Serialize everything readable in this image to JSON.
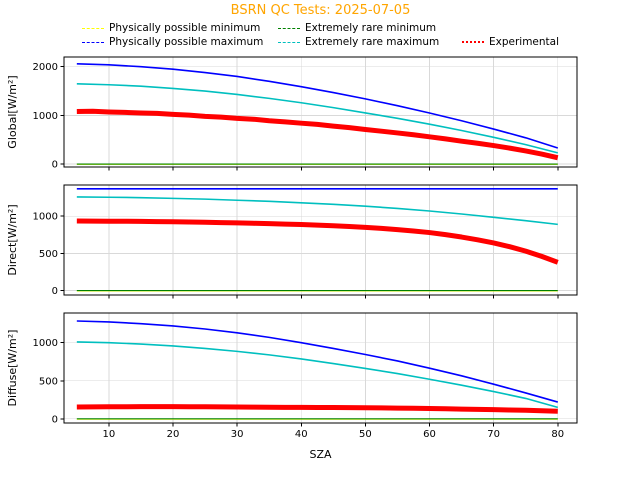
{
  "title": "BSRN QC Tests: 2025-07-05",
  "xlabel": "SZA",
  "colors": {
    "title": "#ffa500",
    "grid": "#d9d9d9",
    "axes": "#000000",
    "background": "#ffffff"
  },
  "legend": {
    "items": [
      {
        "label": "Physically possible minimum",
        "color": "#ffff00",
        "dash": "dashed",
        "row": 1,
        "col": 1
      },
      {
        "label": "Extremely rare minimum",
        "color": "#008000",
        "dash": "dashed",
        "row": 1,
        "col": 2
      },
      {
        "label": "Physically possible maximum",
        "color": "#0000ff",
        "dash": "dashed",
        "row": 2,
        "col": 1
      },
      {
        "label": "Extremely rare maximum",
        "color": "#00bfbf",
        "dash": "dashed",
        "row": 2,
        "col": 2
      },
      {
        "label": "Experimental",
        "color": "#ff0000",
        "dash": "dotted",
        "row": 2,
        "col": 3
      }
    ]
  },
  "chart_data": [
    {
      "type": "line",
      "ylabel": "Global[W/m²]",
      "xlim": [
        3,
        83
      ],
      "ylim": [
        -60,
        2200
      ],
      "yticks": [
        0,
        1000,
        2000
      ],
      "xticks": [
        10,
        20,
        30,
        40,
        50,
        60,
        70,
        80
      ],
      "grid": true,
      "series": [
        {
          "name": "Physically possible minimum",
          "color": "#ffff00",
          "width": 1.2,
          "values": [
            [
              5,
              -4
            ],
            [
              80,
              -4
            ]
          ]
        },
        {
          "name": "Extremely rare minimum",
          "color": "#008000",
          "width": 1.2,
          "values": [
            [
              5,
              0
            ],
            [
              80,
              0
            ]
          ]
        },
        {
          "name": "Physically possible maximum",
          "color": "#0000ff",
          "width": 1.6,
          "values": [
            [
              5,
              2060
            ],
            [
              10,
              2040
            ],
            [
              15,
              2000
            ],
            [
              20,
              1950
            ],
            [
              25,
              1880
            ],
            [
              30,
              1800
            ],
            [
              35,
              1700
            ],
            [
              40,
              1590
            ],
            [
              45,
              1470
            ],
            [
              50,
              1340
            ],
            [
              55,
              1200
            ],
            [
              60,
              1050
            ],
            [
              65,
              890
            ],
            [
              70,
              720
            ],
            [
              75,
              540
            ],
            [
              80,
              330
            ]
          ]
        },
        {
          "name": "Extremely rare maximum",
          "color": "#00bfbf",
          "width": 1.6,
          "values": [
            [
              5,
              1650
            ],
            [
              10,
              1630
            ],
            [
              15,
              1600
            ],
            [
              20,
              1555
            ],
            [
              25,
              1500
            ],
            [
              30,
              1430
            ],
            [
              35,
              1350
            ],
            [
              40,
              1260
            ],
            [
              45,
              1160
            ],
            [
              50,
              1050
            ],
            [
              55,
              940
            ],
            [
              60,
              820
            ],
            [
              65,
              690
            ],
            [
              70,
              550
            ],
            [
              75,
              400
            ],
            [
              80,
              230
            ]
          ]
        },
        {
          "name": "Experimental",
          "color": "#ff0000",
          "width": 5,
          "values": [
            [
              5,
              1080
            ],
            [
              7.5,
              1085
            ],
            [
              10,
              1070
            ],
            [
              12.5,
              1062
            ],
            [
              15,
              1050
            ],
            [
              17.5,
              1042
            ],
            [
              20,
              1020
            ],
            [
              22.5,
              1005
            ],
            [
              25,
              980
            ],
            [
              27.5,
              965
            ],
            [
              30,
              940
            ],
            [
              32.5,
              922
            ],
            [
              35,
              890
            ],
            [
              37.5,
              868
            ],
            [
              40,
              840
            ],
            [
              42.5,
              815
            ],
            [
              45,
              780
            ],
            [
              47.5,
              748
            ],
            [
              50,
              710
            ],
            [
              52.5,
              676
            ],
            [
              55,
              640
            ],
            [
              57.5,
              602
            ],
            [
              60,
              560
            ],
            [
              62.5,
              518
            ],
            [
              65,
              470
            ],
            [
              67.5,
              428
            ],
            [
              70,
              380
            ],
            [
              72.5,
              328
            ],
            [
              75,
              270
            ],
            [
              77.5,
              205
            ],
            [
              80,
              130
            ]
          ]
        }
      ]
    },
    {
      "type": "line",
      "ylabel": "Direct[W/m²]",
      "xlim": [
        3,
        83
      ],
      "ylim": [
        -60,
        1420
      ],
      "yticks": [
        0,
        500,
        1000
      ],
      "xticks": [
        10,
        20,
        30,
        40,
        50,
        60,
        70,
        80
      ],
      "grid": true,
      "series": [
        {
          "name": "Physically possible minimum",
          "color": "#ffff00",
          "width": 1.2,
          "values": [
            [
              5,
              -4
            ],
            [
              80,
              -4
            ]
          ]
        },
        {
          "name": "Extremely rare minimum",
          "color": "#008000",
          "width": 1.2,
          "values": [
            [
              5,
              0
            ],
            [
              80,
              0
            ]
          ]
        },
        {
          "name": "Physically possible maximum",
          "color": "#0000ff",
          "width": 1.6,
          "values": [
            [
              5,
              1368
            ],
            [
              80,
              1368
            ]
          ]
        },
        {
          "name": "Extremely rare maximum",
          "color": "#00bfbf",
          "width": 1.6,
          "values": [
            [
              5,
              1260
            ],
            [
              10,
              1255
            ],
            [
              15,
              1250
            ],
            [
              20,
              1240
            ],
            [
              25,
              1230
            ],
            [
              30,
              1215
            ],
            [
              35,
              1200
            ],
            [
              40,
              1180
            ],
            [
              45,
              1160
            ],
            [
              50,
              1135
            ],
            [
              55,
              1105
            ],
            [
              60,
              1070
            ],
            [
              65,
              1030
            ],
            [
              70,
              985
            ],
            [
              75,
              940
            ],
            [
              80,
              890
            ]
          ]
        },
        {
          "name": "Experimental",
          "color": "#ff0000",
          "width": 5,
          "values": [
            [
              5,
              935
            ],
            [
              7.5,
              934
            ],
            [
              10,
              933
            ],
            [
              12.5,
              932
            ],
            [
              15,
              930
            ],
            [
              17.5,
              928
            ],
            [
              20,
              925
            ],
            [
              22.5,
              922
            ],
            [
              25,
              918
            ],
            [
              27.5,
              914
            ],
            [
              30,
              910
            ],
            [
              32.5,
              905
            ],
            [
              35,
              900
            ],
            [
              37.5,
              894
            ],
            [
              40,
              888
            ],
            [
              42.5,
              880
            ],
            [
              45,
              872
            ],
            [
              47.5,
              862
            ],
            [
              50,
              850
            ],
            [
              52.5,
              836
            ],
            [
              55,
              820
            ],
            [
              57.5,
              801
            ],
            [
              60,
              780
            ],
            [
              62.5,
              752
            ],
            [
              65,
              720
            ],
            [
              67.5,
              683
            ],
            [
              70,
              640
            ],
            [
              72.5,
              590
            ],
            [
              75,
              530
            ],
            [
              77.5,
              460
            ],
            [
              80,
              380
            ]
          ]
        }
      ]
    },
    {
      "type": "line",
      "ylabel": "Diffuse[W/m²]",
      "xlim": [
        3,
        83
      ],
      "ylim": [
        -55,
        1390
      ],
      "yticks": [
        0,
        500,
        1000
      ],
      "xticks": [
        10,
        20,
        30,
        40,
        50,
        60,
        70,
        80
      ],
      "grid": true,
      "series": [
        {
          "name": "Physically possible minimum",
          "color": "#ffff00",
          "width": 1.2,
          "values": [
            [
              5,
              -4
            ],
            [
              80,
              -4
            ]
          ]
        },
        {
          "name": "Extremely rare minimum",
          "color": "#008000",
          "width": 1.2,
          "values": [
            [
              5,
              0
            ],
            [
              80,
              0
            ]
          ]
        },
        {
          "name": "Physically possible maximum",
          "color": "#0000ff",
          "width": 1.6,
          "values": [
            [
              5,
              1285
            ],
            [
              10,
              1272
            ],
            [
              15,
              1250
            ],
            [
              20,
              1220
            ],
            [
              25,
              1180
            ],
            [
              30,
              1130
            ],
            [
              35,
              1070
            ],
            [
              40,
              1000
            ],
            [
              45,
              925
            ],
            [
              50,
              845
            ],
            [
              55,
              760
            ],
            [
              60,
              665
            ],
            [
              65,
              565
            ],
            [
              70,
              455
            ],
            [
              75,
              340
            ],
            [
              80,
              220
            ]
          ]
        },
        {
          "name": "Extremely rare maximum",
          "color": "#00bfbf",
          "width": 1.6,
          "values": [
            [
              5,
              1010
            ],
            [
              10,
              1000
            ],
            [
              15,
              982
            ],
            [
              20,
              958
            ],
            [
              25,
              925
            ],
            [
              30,
              886
            ],
            [
              35,
              840
            ],
            [
              40,
              786
            ],
            [
              45,
              726
            ],
            [
              50,
              662
            ],
            [
              55,
              594
            ],
            [
              60,
              520
            ],
            [
              65,
              442
            ],
            [
              70,
              358
            ],
            [
              75,
              268
            ],
            [
              80,
              150
            ]
          ]
        },
        {
          "name": "Experimental",
          "color": "#ff0000",
          "width": 5,
          "values": [
            [
              5,
              155
            ],
            [
              7.5,
              157
            ],
            [
              10,
              158
            ],
            [
              12.5,
              159
            ],
            [
              15,
              160
            ],
            [
              17.5,
              160
            ],
            [
              20,
              160
            ],
            [
              22.5,
              159
            ],
            [
              25,
              158
            ],
            [
              27.5,
              157
            ],
            [
              30,
              155
            ],
            [
              32.5,
              154
            ],
            [
              35,
              152
            ],
            [
              37.5,
              151
            ],
            [
              40,
              150
            ],
            [
              42.5,
              149
            ],
            [
              45,
              148
            ],
            [
              47.5,
              147
            ],
            [
              50,
              145
            ],
            [
              52.5,
              143
            ],
            [
              55,
              140
            ],
            [
              57.5,
              138
            ],
            [
              60,
              135
            ],
            [
              62.5,
              132
            ],
            [
              65,
              128
            ],
            [
              67.5,
              124
            ],
            [
              70,
              120
            ],
            [
              72.5,
              116
            ],
            [
              75,
              112
            ],
            [
              77.5,
              106
            ],
            [
              80,
              100
            ]
          ]
        }
      ]
    }
  ]
}
